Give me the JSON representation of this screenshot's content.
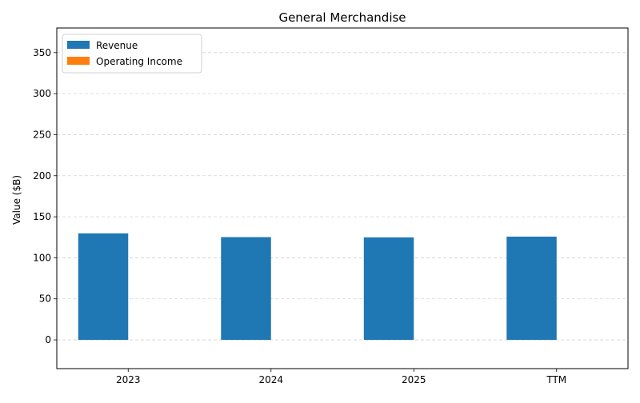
{
  "chart_data": {
    "type": "bar",
    "title": "General Merchandise",
    "xlabel": "",
    "ylabel": "Value ($B)",
    "categories": [
      "2023",
      "2024",
      "2025",
      "TTM"
    ],
    "series": [
      {
        "name": "Revenue",
        "values": [
          129.8,
          125.2,
          124.9,
          125.8
        ],
        "color": "#1f77b4"
      },
      {
        "name": "Operating Income",
        "values": [
          0,
          0,
          0,
          0
        ],
        "color": "#ff7f0e"
      }
    ],
    "ylim": [
      -35,
      380
    ],
    "yticks": [
      0,
      50,
      100,
      150,
      200,
      250,
      300,
      350
    ],
    "grid": "y-dashed",
    "legend": "top-left"
  }
}
